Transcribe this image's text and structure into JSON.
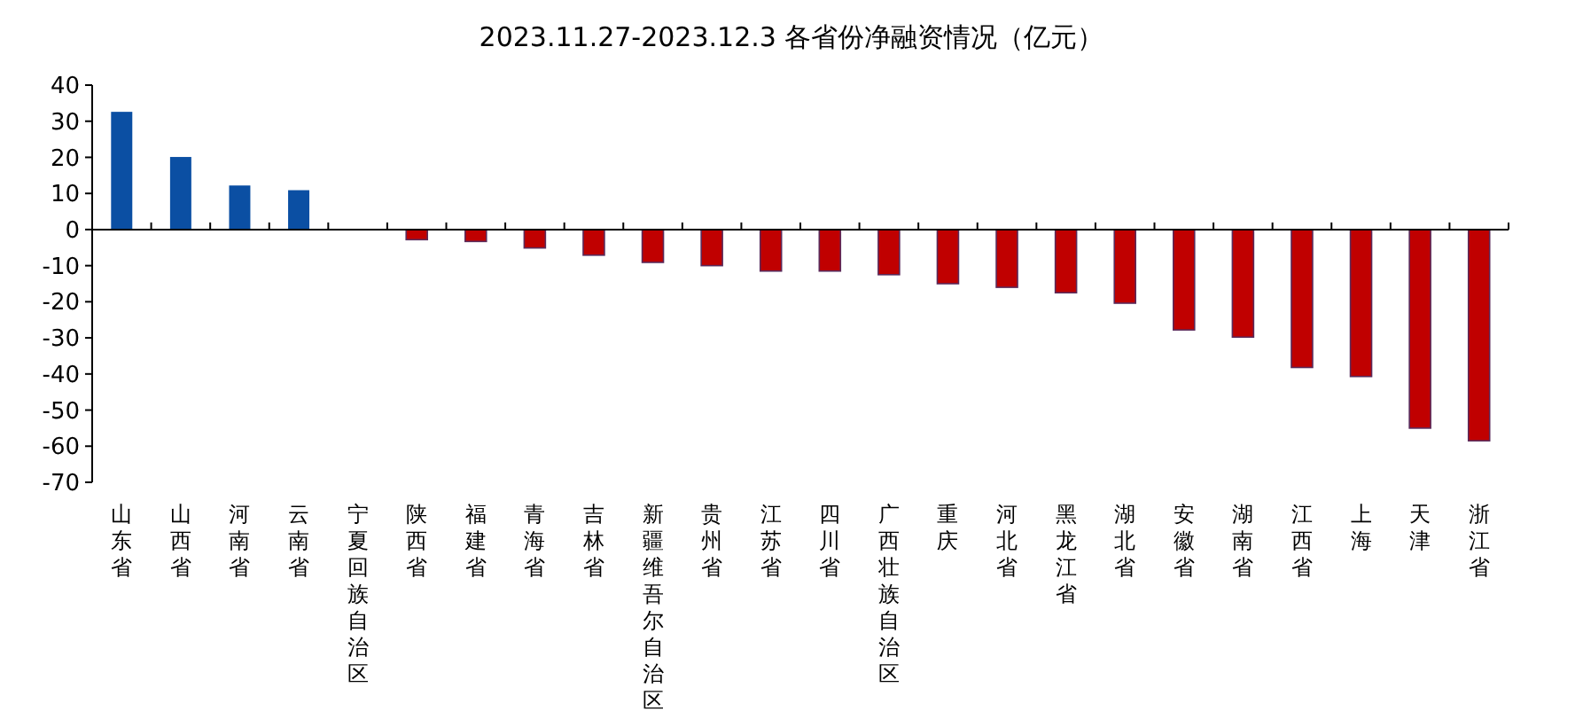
{
  "chart_data": {
    "type": "bar",
    "title": "2023.11.27-2023.12.3 各省份净融资情况（亿元）",
    "categories": [
      "山东省",
      "山西省",
      "河南省",
      "云南省",
      "宁夏回族自治区",
      "陕西省",
      "福建省",
      "青海省",
      "吉林省",
      "新疆维吾尔自治区",
      "贵州省",
      "江苏省",
      "四川省",
      "广西壮族自治区",
      "重庆",
      "河北省",
      "黑龙江省",
      "湖北省",
      "安徽省",
      "湖南省",
      "江西省",
      "上海",
      "天津",
      "浙江省"
    ],
    "values": [
      32.6,
      20.1,
      12.2,
      10.9,
      0,
      -2.8,
      -3.3,
      -5.1,
      -7.1,
      -9.1,
      -10.0,
      -11.5,
      -11.5,
      -12.5,
      -15.0,
      -16.0,
      -17.5,
      -20.4,
      -27.8,
      -29.8,
      -38.2,
      -40.7,
      -55.0,
      -58.5
    ],
    "colors": [
      "#0b4fa3",
      "#0b4fa3",
      "#0b4fa3",
      "#0b4fa3",
      "#0b4fa3",
      "#c00000",
      "#c00000",
      "#c00000",
      "#c00000",
      "#c00000",
      "#c00000",
      "#c00000",
      "#c00000",
      "#c00000",
      "#c00000",
      "#c00000",
      "#c00000",
      "#c00000",
      "#c00000",
      "#c00000",
      "#c00000",
      "#c00000",
      "#c00000",
      "#c00000"
    ],
    "ylim": [
      -70,
      40
    ],
    "yticks": [
      -70,
      -60,
      -50,
      -40,
      -30,
      -20,
      -10,
      0,
      10,
      20,
      30,
      40
    ]
  }
}
